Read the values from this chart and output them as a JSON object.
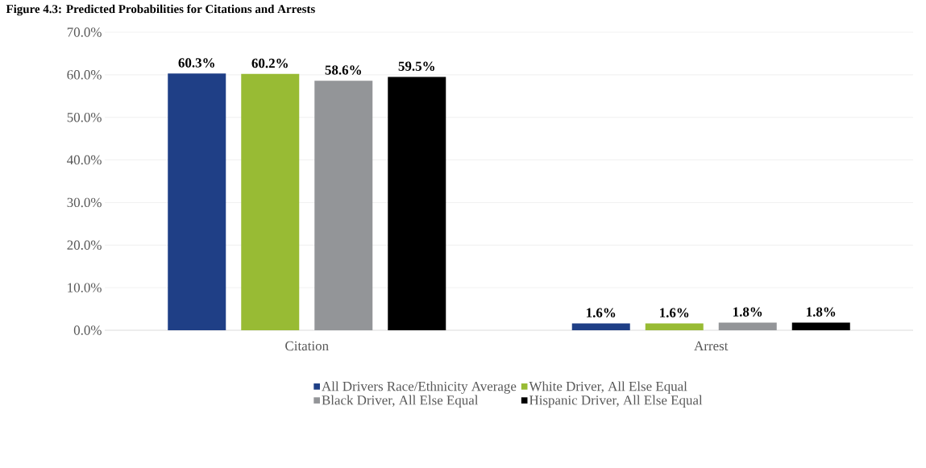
{
  "chart_data": {
    "type": "bar",
    "title": "Figure 4.3: Predicted Probabilities for Citations and Arrests",
    "categories": [
      "Citation",
      "Arrest"
    ],
    "series": [
      {
        "name": "All Drivers Race/Ethnicity Average",
        "color": "#1f3f86",
        "values": [
          60.3,
          1.6
        ],
        "value_labels": [
          "60.3%",
          "1.6%"
        ]
      },
      {
        "name": "White Driver, All Else Equal",
        "color": "#98bb34",
        "values": [
          60.2,
          1.6
        ],
        "value_labels": [
          "60.2%",
          "1.6%"
        ]
      },
      {
        "name": "Black Driver, All Else Equal",
        "color": "#939598",
        "values": [
          58.6,
          1.8
        ],
        "value_labels": [
          "58.6%",
          "1.8%"
        ]
      },
      {
        "name": "Hispanic Driver, All Else Equal",
        "color": "#000000",
        "values": [
          59.5,
          1.8
        ],
        "value_labels": [
          "59.5%",
          "1.8%"
        ]
      }
    ],
    "ylim": [
      0,
      70
    ],
    "yticks": [
      {
        "value": 0,
        "label": "0.0%"
      },
      {
        "value": 10,
        "label": "10.0%"
      },
      {
        "value": 20,
        "label": "20.0%"
      },
      {
        "value": 30,
        "label": "30.0%"
      },
      {
        "value": 40,
        "label": "40.0%"
      },
      {
        "value": 50,
        "label": "50.0%"
      },
      {
        "value": 60,
        "label": "60.0%"
      },
      {
        "value": 70,
        "label": "70.0%"
      }
    ],
    "grid": "y",
    "legend": "bottom"
  }
}
